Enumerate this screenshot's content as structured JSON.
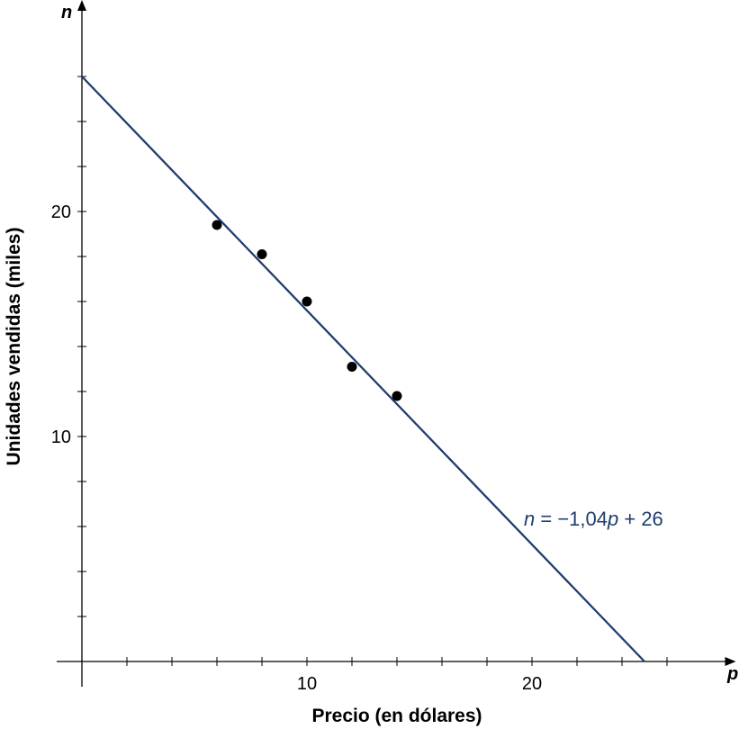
{
  "chart_data": {
    "type": "scatter",
    "xlabel": "Precio (en dólares)",
    "ylabel": "Unidades vendidas (miles)",
    "x_axis_variable": "p",
    "y_axis_variable": "n",
    "xlim": [
      0,
      28.5
    ],
    "ylim": [
      0,
      29
    ],
    "x_ticks": [
      2,
      4,
      6,
      8,
      10,
      12,
      14,
      16,
      18,
      20,
      22,
      24,
      26
    ],
    "y_ticks": [
      2,
      4,
      6,
      8,
      10,
      12,
      14,
      16,
      18,
      20,
      22,
      24,
      26
    ],
    "x_tick_labels": [
      {
        "value": 10,
        "label": "10"
      },
      {
        "value": 20,
        "label": "20"
      }
    ],
    "y_tick_labels": [
      {
        "value": 10,
        "label": "10"
      },
      {
        "value": 20,
        "label": "20"
      }
    ],
    "grid": false,
    "points": [
      {
        "x": 6,
        "y": 19.4
      },
      {
        "x": 8,
        "y": 18.1
      },
      {
        "x": 10,
        "y": 16
      },
      {
        "x": 12,
        "y": 13.1
      },
      {
        "x": 14,
        "y": 11.8
      }
    ],
    "fit_line": {
      "slope": -1.04,
      "intercept": 26,
      "x_range": [
        0,
        25
      ],
      "label_parts": {
        "n": "n",
        "eq": " = −1,04",
        "p": "p",
        "rest": " + 26"
      },
      "color": "#1f3d6e"
    },
    "point_color": "#000000"
  }
}
